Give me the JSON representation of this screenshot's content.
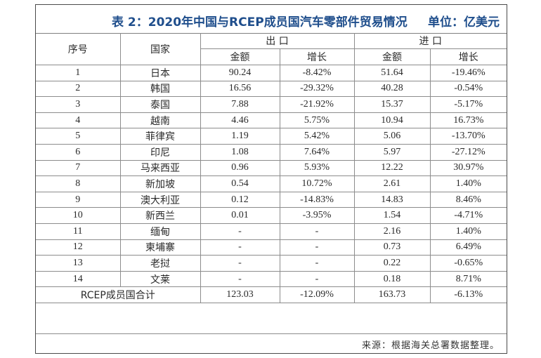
{
  "title": "表 2：2020年中国与RCEP成员国汽车零部件贸易情况",
  "unit": "单位：亿美元",
  "headers": {
    "index": "序号",
    "country": "国家",
    "export": "出 口",
    "import": "进 口",
    "amount": "金额",
    "growth": "增长"
  },
  "rows": [
    {
      "no": "1",
      "country": "日本",
      "exp_amount": "90.24",
      "exp_growth": "-8.42%",
      "imp_amount": "51.64",
      "imp_growth": "-19.46%"
    },
    {
      "no": "2",
      "country": "韩国",
      "exp_amount": "16.56",
      "exp_growth": "-29.32%",
      "imp_amount": "40.28",
      "imp_growth": "-0.54%"
    },
    {
      "no": "3",
      "country": "泰国",
      "exp_amount": "7.88",
      "exp_growth": "-21.92%",
      "imp_amount": "15.37",
      "imp_growth": "-5.17%"
    },
    {
      "no": "4",
      "country": "越南",
      "exp_amount": "4.46",
      "exp_growth": "5.75%",
      "imp_amount": "10.94",
      "imp_growth": "16.73%"
    },
    {
      "no": "5",
      "country": "菲律宾",
      "exp_amount": "1.19",
      "exp_growth": "5.42%",
      "imp_amount": "5.06",
      "imp_growth": "-13.70%"
    },
    {
      "no": "6",
      "country": "印尼",
      "exp_amount": "1.08",
      "exp_growth": "7.64%",
      "imp_amount": "5.97",
      "imp_growth": "-27.12%"
    },
    {
      "no": "7",
      "country": "马来西亚",
      "exp_amount": "0.96",
      "exp_growth": "5.93%",
      "imp_amount": "12.22",
      "imp_growth": "30.97%"
    },
    {
      "no": "8",
      "country": "新加坡",
      "exp_amount": "0.54",
      "exp_growth": "10.72%",
      "imp_amount": "2.61",
      "imp_growth": "1.40%"
    },
    {
      "no": "9",
      "country": "澳大利亚",
      "exp_amount": "0.12",
      "exp_growth": "-14.83%",
      "imp_amount": "14.83",
      "imp_growth": "8.46%"
    },
    {
      "no": "10",
      "country": "新西兰",
      "exp_amount": "0.01",
      "exp_growth": "-3.95%",
      "imp_amount": "1.54",
      "imp_growth": "-4.71%"
    },
    {
      "no": "11",
      "country": "缅甸",
      "exp_amount": "-",
      "exp_growth": "-",
      "imp_amount": "2.16",
      "imp_growth": "1.40%"
    },
    {
      "no": "12",
      "country": "柬埔寨",
      "exp_amount": "-",
      "exp_growth": "-",
      "imp_amount": "0.73",
      "imp_growth": "6.49%"
    },
    {
      "no": "13",
      "country": "老挝",
      "exp_amount": "-",
      "exp_growth": "-",
      "imp_amount": "0.22",
      "imp_growth": "-0.65%"
    },
    {
      "no": "14",
      "country": "文莱",
      "exp_amount": "-",
      "exp_growth": "-",
      "imp_amount": "0.18",
      "imp_growth": "8.71%"
    }
  ],
  "total": {
    "label": "RCEP成员国合计",
    "exp_amount": "123.03",
    "exp_growth": "-12.09%",
    "imp_amount": "163.73",
    "imp_growth": "-6.13%"
  },
  "source": "来源：根据海关总署数据整理。"
}
